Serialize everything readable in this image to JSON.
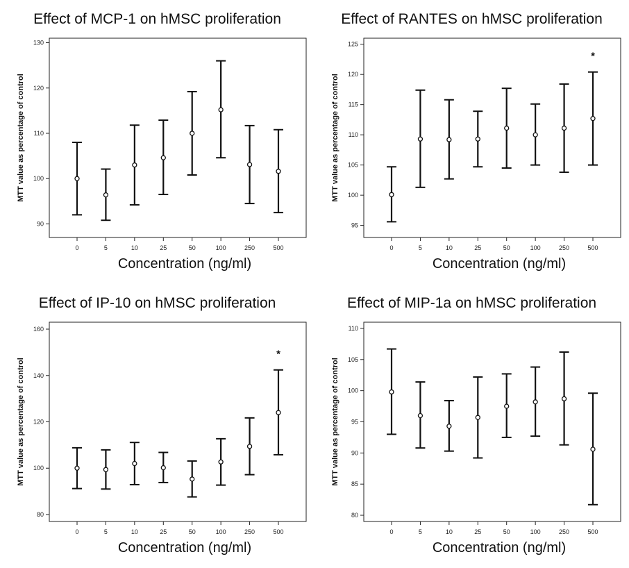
{
  "chart_data": [
    {
      "type": "scatter",
      "title": "Effect of MCP-1 on hMSC proliferation",
      "xlabel": "Concentration (ng/ml)",
      "ylabel": "MTT value as percentage of control",
      "categories": [
        "0",
        "5",
        "10",
        "25",
        "50",
        "100",
        "250",
        "500"
      ],
      "ylim": [
        87,
        131
      ],
      "yticks": [
        90,
        100,
        110,
        120,
        130
      ],
      "series": [
        {
          "mean": [
            100.0,
            96.4,
            103.0,
            104.6,
            110.0,
            115.2,
            103.1,
            101.6
          ],
          "lower": [
            92.0,
            90.8,
            94.2,
            96.5,
            100.8,
            104.6,
            94.5,
            92.5
          ],
          "upper": [
            108.0,
            102.1,
            111.8,
            112.9,
            119.2,
            126.0,
            111.7,
            110.8
          ]
        }
      ],
      "annotations": []
    },
    {
      "type": "scatter",
      "title": "Effect of RANTES on hMSC proliferation",
      "xlabel": "Concentration (ng/ml)",
      "ylabel": "MTT value as percentage of control",
      "categories": [
        "0",
        "5",
        "10",
        "25",
        "50",
        "100",
        "250",
        "500"
      ],
      "ylim": [
        93,
        126
      ],
      "yticks": [
        95,
        100,
        105,
        110,
        115,
        120,
        125
      ],
      "series": [
        {
          "mean": [
            100.1,
            109.3,
            109.2,
            109.3,
            111.1,
            110.0,
            111.1,
            112.7
          ],
          "lower": [
            95.6,
            101.3,
            102.7,
            104.7,
            104.5,
            105.0,
            103.8,
            105.0
          ],
          "upper": [
            104.7,
            117.4,
            115.8,
            113.9,
            117.7,
            115.1,
            118.4,
            120.4
          ]
        }
      ],
      "annotations": [
        {
          "category": "500",
          "text": "*"
        }
      ]
    },
    {
      "type": "scatter",
      "title": "Effect of IP-10 on hMSC proliferation",
      "xlabel": "Concentration (ng/ml)",
      "ylabel": "MTT value as percentage of control",
      "categories": [
        "0",
        "5",
        "10",
        "25",
        "50",
        "100",
        "250",
        "500"
      ],
      "ylim": [
        77,
        163
      ],
      "yticks": [
        80,
        100,
        120,
        140,
        160
      ],
      "series": [
        {
          "mean": [
            100.0,
            99.4,
            102.0,
            100.2,
            95.3,
            102.7,
            109.4,
            124.0
          ],
          "lower": [
            91.2,
            91.0,
            92.9,
            93.8,
            87.6,
            92.7,
            97.2,
            105.8
          ],
          "upper": [
            108.8,
            107.9,
            111.1,
            106.8,
            103.1,
            112.7,
            121.7,
            142.4
          ]
        }
      ],
      "annotations": [
        {
          "category": "500",
          "text": "*"
        }
      ]
    },
    {
      "type": "scatter",
      "title": "Effect of MIP-1a on hMSC proliferation",
      "xlabel": "Concentration (ng/ml)",
      "ylabel": "MTT value as percentage of control",
      "categories": [
        "0",
        "5",
        "10",
        "25",
        "50",
        "100",
        "250",
        "500"
      ],
      "ylim": [
        79,
        111
      ],
      "yticks": [
        80,
        85,
        90,
        95,
        100,
        105,
        110
      ],
      "series": [
        {
          "mean": [
            99.8,
            96.0,
            94.3,
            95.7,
            97.5,
            98.2,
            98.7,
            90.6
          ],
          "lower": [
            93.0,
            90.8,
            90.3,
            89.2,
            92.5,
            92.7,
            91.3,
            81.7
          ],
          "upper": [
            106.7,
            101.4,
            98.4,
            102.2,
            102.7,
            103.8,
            106.2,
            99.6
          ]
        }
      ],
      "annotations": []
    }
  ]
}
